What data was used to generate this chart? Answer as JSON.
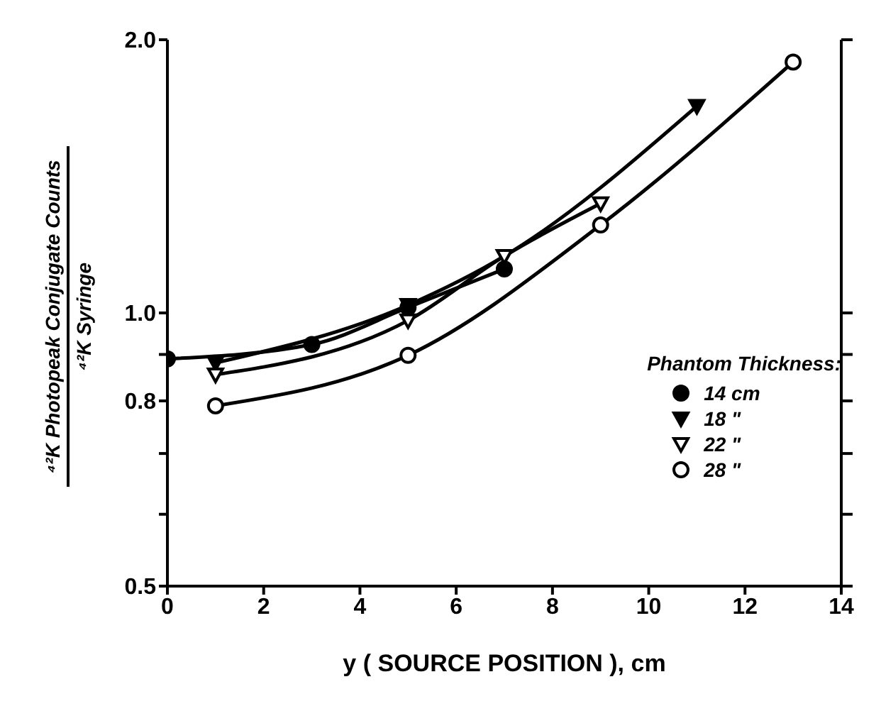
{
  "chart_data": {
    "type": "line",
    "xlabel": "y  ( SOURCE POSITION ), cm",
    "ylabel": "⁴²K Photopeak Conjugate Counts\n⁴²K Syringe",
    "legend_title": "Phantom Thickness:",
    "legend": "right",
    "log": "y",
    "line_style": "solid",
    "xlim": [
      0,
      14
    ],
    "xticks": [
      0,
      2,
      4,
      6,
      8,
      10,
      12,
      14
    ],
    "ylim": [
      0.5,
      2.0
    ],
    "yticks": [
      0.5,
      {
        "value": 0.6,
        "label": null
      },
      {
        "value": 0.7,
        "label": null
      },
      0.8,
      {
        "value": 0.9,
        "label": null
      },
      {
        "value": 1,
        "label": "1.0"
      },
      {
        "value": 2,
        "label": "2.0"
      }
    ],
    "series": [
      {
        "name": "14 cm",
        "color": "#000000",
        "marker": "circle",
        "x": [
          0,
          3,
          5,
          7
        ],
        "values": [
          0.89,
          0.923,
          1.014,
          1.118
        ]
      },
      {
        "name": "18 \"",
        "color": "#000000",
        "marker": "triangle",
        "x": [
          1,
          5,
          7,
          11
        ],
        "values": [
          0.881,
          1.02,
          1.155,
          1.69
        ]
      },
      {
        "name": "22 \"",
        "color": "#000000",
        "marker": "triangle",
        "colors": [
          "#ffffff",
          "#ffffff",
          "#ffffff",
          "#ffffff"
        ],
        "x": [
          1,
          5,
          7,
          9
        ],
        "values": [
          0.855,
          0.981,
          1.155,
          1.32
        ]
      },
      {
        "name": "28 \"",
        "color": "#000000",
        "marker": "circle",
        "colors": [
          "#ffffff",
          "#ffffff",
          "#ffffff",
          "#ffffff"
        ],
        "x": [
          1,
          5,
          9,
          13
        ],
        "values": [
          0.79,
          0.898,
          1.25,
          1.89
        ]
      }
    ]
  }
}
